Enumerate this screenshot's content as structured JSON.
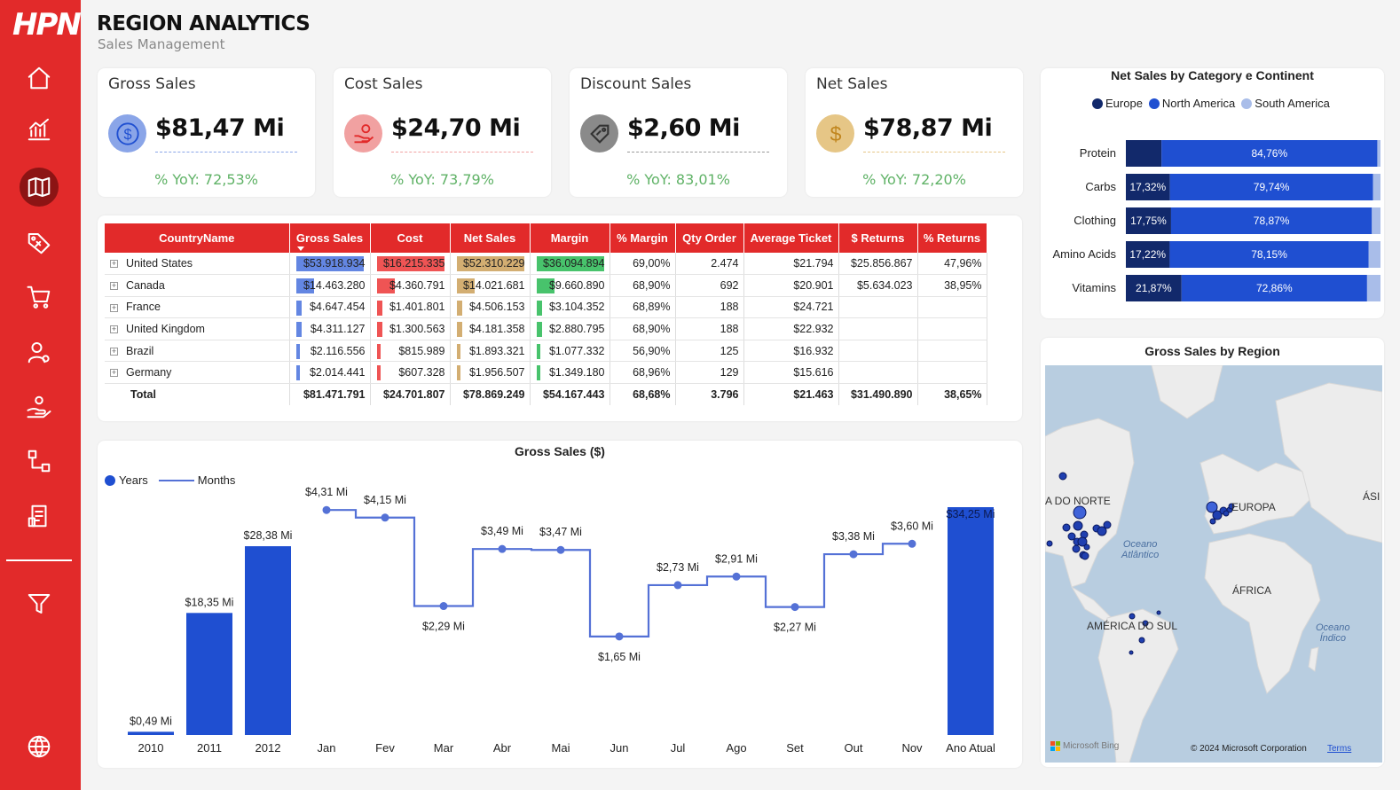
{
  "app": {
    "logo": "HPN",
    "title": "REGION ANALYTICS",
    "subtitle": "Sales Management"
  },
  "sidebar": {
    "items": [
      {
        "name": "home-icon"
      },
      {
        "name": "chart-icon"
      },
      {
        "name": "map-icon",
        "active": true
      },
      {
        "name": "discount-tag-icon"
      },
      {
        "name": "cart-icon"
      },
      {
        "name": "user-icon"
      },
      {
        "name": "hand-coin-icon"
      },
      {
        "name": "flow-icon"
      },
      {
        "name": "report-icon"
      }
    ],
    "filter_icon": "filter-icon",
    "globe_icon": "globe-icon"
  },
  "kpis": [
    {
      "title": "Gross Sales",
      "value": "$81,47 Mi",
      "yoy": "% YoY: 72,53%",
      "icon": "dollar-icon",
      "color": "#8aa5e8"
    },
    {
      "title": "Cost Sales",
      "value": "$24,70 Mi",
      "yoy": "% YoY: 73,79%",
      "icon": "hand-money-icon",
      "color": "#f1a1a1"
    },
    {
      "title": "Discount Sales",
      "value": "$2,60 Mi",
      "yoy": "% YoY: 83,01%",
      "icon": "discount-icon",
      "color": "#8a8a8a"
    },
    {
      "title": "Net Sales",
      "value": "$78,87 Mi",
      "yoy": "% YoY: 72,20%",
      "icon": "dollar-coin-icon",
      "color": "#e6c686"
    }
  ],
  "table": {
    "headers": [
      "CountryName",
      "Gross Sales",
      "Cost",
      "Net Sales",
      "Margin",
      "% Margin",
      "Qty Order",
      "Average Ticket",
      "$ Returns",
      "% Returns"
    ],
    "rows": [
      {
        "country": "United States",
        "gross": "$53.918.934",
        "cost": "$16.215.335",
        "net": "$52.310.229",
        "margin": "$36.094.894",
        "pmargin": "69,00%",
        "qty": "2.474",
        "ticket": "$21.794",
        "returns": "$25.856.867",
        "preturns": "47,96%",
        "g": 53918934,
        "c": 16215335,
        "n": 52310229,
        "m": 36094894
      },
      {
        "country": "Canada",
        "gross": "$14.463.280",
        "cost": "$4.360.791",
        "net": "$14.021.681",
        "margin": "$9.660.890",
        "pmargin": "68,90%",
        "qty": "692",
        "ticket": "$20.901",
        "returns": "$5.634.023",
        "preturns": "38,95%",
        "g": 14463280,
        "c": 4360791,
        "n": 14021681,
        "m": 9660890
      },
      {
        "country": "France",
        "gross": "$4.647.454",
        "cost": "$1.401.801",
        "net": "$4.506.153",
        "margin": "$3.104.352",
        "pmargin": "68,89%",
        "qty": "188",
        "ticket": "$24.721",
        "returns": "",
        "preturns": "",
        "g": 4647454,
        "c": 1401801,
        "n": 4506153,
        "m": 3104352
      },
      {
        "country": "United Kingdom",
        "gross": "$4.311.127",
        "cost": "$1.300.563",
        "net": "$4.181.358",
        "margin": "$2.880.795",
        "pmargin": "68,90%",
        "qty": "188",
        "ticket": "$22.932",
        "returns": "",
        "preturns": "",
        "g": 4311127,
        "c": 1300563,
        "n": 4181358,
        "m": 2880795
      },
      {
        "country": "Brazil",
        "gross": "$2.116.556",
        "cost": "$815.989",
        "net": "$1.893.321",
        "margin": "$1.077.332",
        "pmargin": "56,90%",
        "qty": "125",
        "ticket": "$16.932",
        "returns": "",
        "preturns": "",
        "g": 2116556,
        "c": 815989,
        "n": 1893321,
        "m": 1077332
      },
      {
        "country": "Germany",
        "gross": "$2.014.441",
        "cost": "$607.328",
        "net": "$1.956.507",
        "margin": "$1.349.180",
        "pmargin": "68,96%",
        "qty": "129",
        "ticket": "$15.616",
        "returns": "",
        "preturns": "",
        "g": 2014441,
        "c": 607328,
        "n": 1956507,
        "m": 1349180
      }
    ],
    "total": {
      "country": "Total",
      "gross": "$81.471.791",
      "cost": "$24.701.807",
      "net": "$78.869.249",
      "margin": "$54.167.443",
      "pmargin": "68,68%",
      "qty": "3.796",
      "ticket": "$21.463",
      "returns": "$31.490.890",
      "preturns": "38,65%"
    },
    "bar_colors": {
      "gross": "#5b7fe0",
      "cost": "#ee4b4b",
      "net": "#d1aa6a",
      "margin": "#3ec064"
    }
  },
  "gross_chart": {
    "title": "Gross Sales ($)",
    "legend": {
      "years": "Years",
      "months": "Months"
    },
    "colors": {
      "bar": "#1f4fd1",
      "line": "#5471d6"
    }
  },
  "chart_data": [
    {
      "type": "bar",
      "title": "Gross Sales ($)",
      "categories": [
        "2010",
        "2011",
        "2012",
        "Jan",
        "Fev",
        "Mar",
        "Abr",
        "Mai",
        "Jun",
        "Jul",
        "Ago",
        "Set",
        "Out",
        "Nov",
        "Ano Atual"
      ],
      "series": [
        {
          "name": "Years",
          "values": [
            0.49,
            18.35,
            28.38,
            null,
            null,
            null,
            null,
            null,
            null,
            null,
            null,
            null,
            null,
            null,
            34.25
          ],
          "labels": [
            "$0,49 Mi",
            "$18,35 Mi",
            "$28,38 Mi",
            "",
            "",
            "",
            "",
            "",
            "",
            "",
            "",
            "",
            "",
            "",
            "$34,25 Mi"
          ]
        },
        {
          "name": "Months",
          "values": [
            null,
            null,
            null,
            4.31,
            4.15,
            2.29,
            3.49,
            3.47,
            1.65,
            2.73,
            2.91,
            2.27,
            3.38,
            3.6,
            null
          ],
          "labels": [
            "",
            "",
            "",
            "$4,31 Mi",
            "$4,15 Mi",
            "$2,29 Mi",
            "$3,49 Mi",
            "$3,47 Mi",
            "$1,65 Mi",
            "$2,73 Mi",
            "$2,91 Mi",
            "$2,27 Mi",
            "$3,38 Mi",
            "$3,60 Mi",
            ""
          ]
        }
      ],
      "ylim_years": [
        0,
        34.25
      ],
      "ylim_months": [
        1.2,
        4.5
      ]
    },
    {
      "type": "bar",
      "title": "Net Sales by Category e Continent",
      "categories": [
        "Protein",
        "Carbs",
        "Clothing",
        "Amino Acids",
        "Vitamins"
      ],
      "series": [
        {
          "name": "Europe",
          "color": "#12296b",
          "values": [
            14.0,
            17.32,
            17.75,
            17.22,
            21.87
          ],
          "labels": [
            "",
            "17,32%",
            "17,75%",
            "17,22%",
            "21,87%"
          ]
        },
        {
          "name": "North America",
          "color": "#1f4fd1",
          "values": [
            84.76,
            79.74,
            78.87,
            78.15,
            72.86
          ],
          "labels": [
            "84,76%",
            "79,74%",
            "78,87%",
            "78,15%",
            "72,86%"
          ]
        },
        {
          "name": "South America",
          "color": "#a9bde9",
          "values": [
            1.24,
            2.94,
            3.38,
            4.63,
            5.27
          ],
          "labels": [
            "",
            "",
            "",
            "",
            ""
          ]
        }
      ],
      "stacked": true,
      "legend_position": "top"
    }
  ],
  "category_chart": {
    "title": "Net Sales by Category e Continent"
  },
  "map": {
    "title": "Gross Sales by Region",
    "labels": {
      "na": "A DO NORTE",
      "eu": "EUROPA",
      "as": "ÁSI",
      "af": "ÁFRICA",
      "sa": "AMÉRICA DO SUL"
    },
    "oceans": {
      "atl": "Oceano\nAtlântico",
      "ind": "Oceano\nÍndico"
    },
    "footer": {
      "bing": "Microsoft Bing",
      "copyright": "© 2024 Microsoft Corporation",
      "terms": "Terms"
    },
    "colors": {
      "land": "#ececec",
      "water": "#b8cde0",
      "marker": "#1f4fd1"
    }
  }
}
